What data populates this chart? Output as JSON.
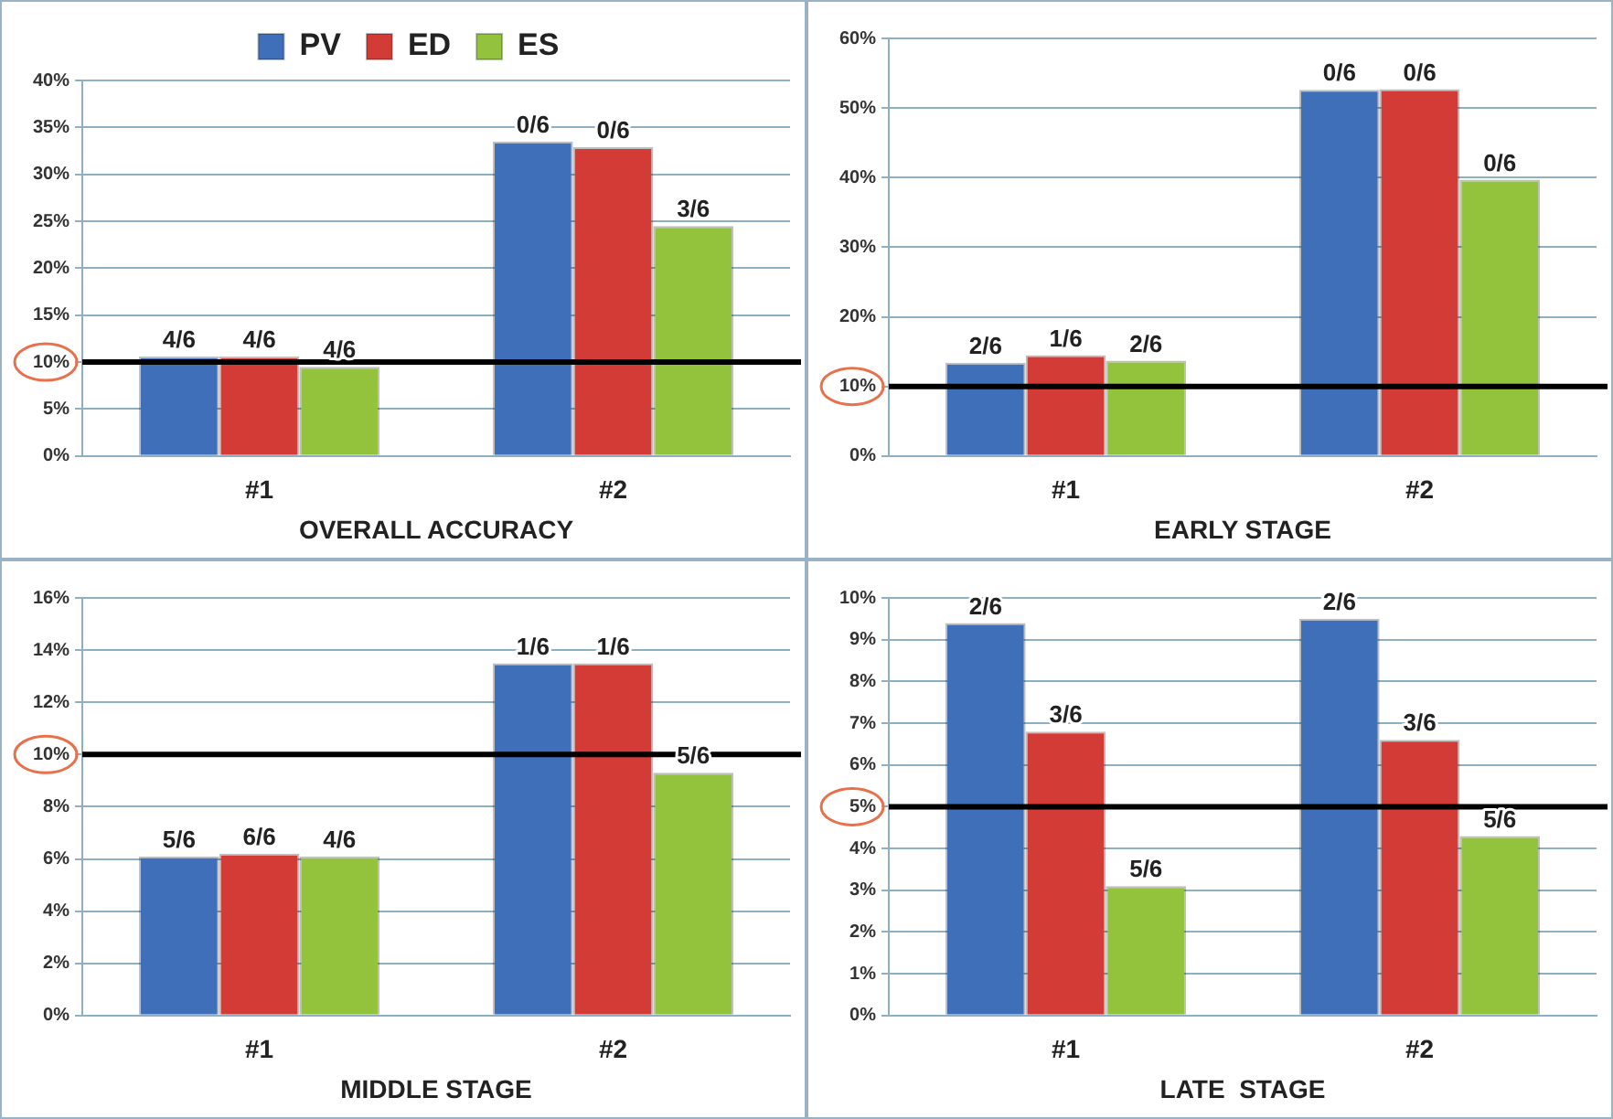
{
  "chart_data": [
    {
      "type": "bar",
      "xlabel": "OVERALL ACCURACY",
      "categories": [
        "#1",
        "#2"
      ],
      "legend": "top",
      "grid": "y",
      "ylim": [
        0,
        40
      ],
      "yticks": [
        {
          "value": 0,
          "label": "0%"
        },
        {
          "value": 5,
          "label": "5%"
        },
        {
          "value": 10,
          "label": "10%"
        },
        {
          "value": 15,
          "label": "15%"
        },
        {
          "value": 20,
          "label": "20%"
        },
        {
          "value": 25,
          "label": "25%"
        },
        {
          "value": 30,
          "label": "30%"
        },
        {
          "value": 35,
          "label": "35%"
        },
        {
          "value": 40,
          "label": "40%"
        }
      ],
      "ref_lines": [
        {
          "axis": "y",
          "value": 10,
          "color": "#000000"
        }
      ],
      "series": [
        {
          "name": "PV",
          "color": "#3f6fb8",
          "values": [
            10.6,
            33.5
          ]
        },
        {
          "name": "ED",
          "color": "#d23b36",
          "values": [
            10.6,
            32.9
          ]
        },
        {
          "name": "ES",
          "color": "#93c23d",
          "values": [
            9.5,
            24.5
          ]
        }
      ],
      "annotations": [
        "4/6",
        "0/6",
        "4/6",
        "0/6",
        "4/6",
        "3/6"
      ]
    },
    {
      "type": "bar",
      "xlabel": "EARLY STAGE",
      "categories": [
        "#1",
        "#2"
      ],
      "grid": "y",
      "ylim": [
        0,
        60
      ],
      "yticks": [
        {
          "value": 0,
          "label": "0%"
        },
        {
          "value": 10,
          "label": "10%"
        },
        {
          "value": 20,
          "label": "20%"
        },
        {
          "value": 30,
          "label": "30%"
        },
        {
          "value": 40,
          "label": "40%"
        },
        {
          "value": 50,
          "label": "50%"
        },
        {
          "value": 60,
          "label": "60%"
        }
      ],
      "ref_lines": [
        {
          "axis": "y",
          "value": 10,
          "color": "#000000"
        }
      ],
      "series": [
        {
          "color": "#3f6fb8",
          "values": [
            13.4,
            52.6
          ]
        },
        {
          "color": "#d23b36",
          "values": [
            14.5,
            52.7
          ]
        },
        {
          "color": "#93c23d",
          "values": [
            13.7,
            39.7
          ]
        }
      ],
      "annotations": [
        "2/6",
        "0/6",
        "1/6",
        "0/6",
        "2/6",
        "0/6"
      ]
    },
    {
      "type": "bar",
      "xlabel": "MIDDLE STAGE",
      "categories": [
        "#1",
        "#2"
      ],
      "grid": "y",
      "ylim": [
        0,
        16
      ],
      "yticks": [
        {
          "value": 0,
          "label": "0%"
        },
        {
          "value": 2,
          "label": "2%"
        },
        {
          "value": 4,
          "label": "4%"
        },
        {
          "value": 6,
          "label": "6%"
        },
        {
          "value": 8,
          "label": "8%"
        },
        {
          "value": 10,
          "label": "10%"
        },
        {
          "value": 12,
          "label": "12%"
        },
        {
          "value": 14,
          "label": "14%"
        },
        {
          "value": 16,
          "label": "16%"
        }
      ],
      "ref_lines": [
        {
          "axis": "y",
          "value": 10,
          "color": "#000000"
        }
      ],
      "series": [
        {
          "color": "#3f6fb8",
          "values": [
            6.1,
            13.5
          ]
        },
        {
          "color": "#d23b36",
          "values": [
            6.2,
            13.5
          ]
        },
        {
          "color": "#93c23d",
          "values": [
            6.1,
            9.3
          ]
        }
      ],
      "annotations": [
        "5/6",
        "1/6",
        "6/6",
        "1/6",
        "4/6",
        "5/6"
      ]
    },
    {
      "type": "bar",
      "xlabel": "LATE  STAGE",
      "categories": [
        "#1",
        "#2"
      ],
      "grid": "y",
      "ylim": [
        0,
        10
      ],
      "yticks": [
        {
          "value": 0,
          "label": "0%"
        },
        {
          "value": 1,
          "label": "1%"
        },
        {
          "value": 2,
          "label": "2%"
        },
        {
          "value": 3,
          "label": "3%"
        },
        {
          "value": 4,
          "label": "4%"
        },
        {
          "value": 5,
          "label": "5%"
        },
        {
          "value": 6,
          "label": "6%"
        },
        {
          "value": 7,
          "label": "7%"
        },
        {
          "value": 8,
          "label": "8%"
        },
        {
          "value": 9,
          "label": "9%"
        },
        {
          "value": 10,
          "label": "10%"
        }
      ],
      "ref_lines": [
        {
          "axis": "y",
          "value": 5,
          "color": "#000000"
        }
      ],
      "series": [
        {
          "color": "#3f6fb8",
          "values": [
            9.4,
            9.5
          ]
        },
        {
          "color": "#d23b36",
          "values": [
            6.8,
            6.6
          ]
        },
        {
          "color": "#93c23d",
          "values": [
            3.1,
            4.3
          ]
        }
      ],
      "annotations": [
        "2/6",
        "2/6",
        "3/6",
        "3/6",
        "5/6",
        "5/6"
      ]
    }
  ]
}
